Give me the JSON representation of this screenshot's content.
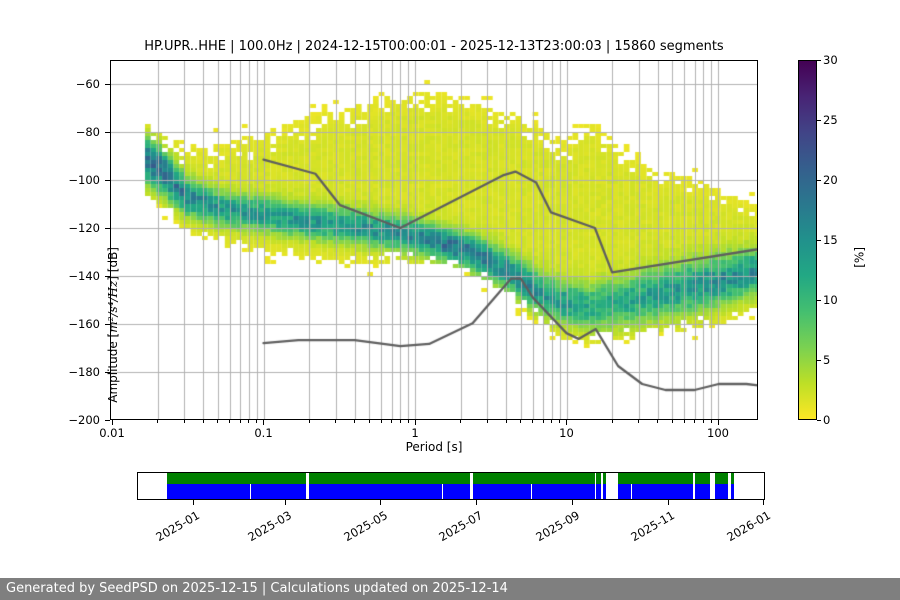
{
  "title": "HP.UPR..HHE | 100.0Hz | 2024-12-15T00:00:01 - 2025-12-13T23:00:03 | 15860 segments",
  "footer": {
    "text": "Generated by SeedPSD on 2025-12-15 | Calculations updated on 2025-12-14",
    "bg": "#7f7f7f",
    "fg": "#ffffff"
  },
  "chart_data": {
    "type": "heatmap",
    "description": "PPSD probabilistic power spectral density of seismic channel HP.UPR..HHE with Peterson NLNM/NHNM noise model lines and a data-availability timeline",
    "xlabel": "Period [s]",
    "xscale": "log",
    "xlim": [
      0.01,
      183
    ],
    "xticks": [
      {
        "v": 0.01,
        "label": "0.01"
      },
      {
        "v": 0.1,
        "label": "0.1"
      },
      {
        "v": 1,
        "label": "1"
      },
      {
        "v": 10,
        "label": "10"
      },
      {
        "v": 100,
        "label": "100"
      }
    ],
    "ylabel": "Amplitude [m²/s⁴/Hz] [dB]",
    "ylabel_prefix": "Amplitude [",
    "ylabel_math": "m²/s⁴/Hz",
    "ylabel_suffix": "] [dB]",
    "ylim": [
      -200,
      -50
    ],
    "yticks": [
      {
        "v": -60,
        "label": "−60"
      },
      {
        "v": -80,
        "label": "−80"
      },
      {
        "v": -100,
        "label": "−100"
      },
      {
        "v": -120,
        "label": "−120"
      },
      {
        "v": -140,
        "label": "−140"
      },
      {
        "v": -160,
        "label": "−160"
      },
      {
        "v": -180,
        "label": "−180"
      },
      {
        "v": -200,
        "label": "−200"
      }
    ],
    "grid": {
      "color": "#b0b0b0",
      "which": "both"
    },
    "colorbar": {
      "label": "[%]",
      "lim": [
        0,
        30
      ],
      "ticks": [
        {
          "v": 0,
          "label": "0"
        },
        {
          "v": 5,
          "label": "5"
        },
        {
          "v": 10,
          "label": "10"
        },
        {
          "v": 15,
          "label": "15"
        },
        {
          "v": 20,
          "label": "20"
        },
        {
          "v": 25,
          "label": "25"
        },
        {
          "v": 30,
          "label": "30"
        }
      ],
      "colormap": "viridis reversed (0% yellow, 30% dark purple)",
      "stops": [
        [
          0.0,
          "#440154"
        ],
        [
          0.1,
          "#482475"
        ],
        [
          0.2,
          "#414487"
        ],
        [
          0.3,
          "#355f8d"
        ],
        [
          0.4,
          "#2a788e"
        ],
        [
          0.5,
          "#21918c"
        ],
        [
          0.6,
          "#22a884"
        ],
        [
          0.7,
          "#44bf70"
        ],
        [
          0.8,
          "#7ad151"
        ],
        [
          0.9,
          "#bddf26"
        ],
        [
          1.0,
          "#fde725"
        ]
      ]
    },
    "noise_models": {
      "name": "Peterson (1993) new low / high noise models",
      "color": "#5f5f5f",
      "nlnm": [
        [
          0.1,
          -168.0
        ],
        [
          0.17,
          -166.7
        ],
        [
          0.4,
          -166.7
        ],
        [
          0.8,
          -169.2
        ],
        [
          1.24,
          -168.3
        ],
        [
          2.4,
          -159.7
        ],
        [
          4.3,
          -141.1
        ],
        [
          5.0,
          -141.1
        ],
        [
          6.0,
          -149.0
        ],
        [
          10.0,
          -163.8
        ],
        [
          12.0,
          -166.2
        ],
        [
          15.6,
          -162.1
        ],
        [
          21.9,
          -177.5
        ],
        [
          31.6,
          -185.0
        ],
        [
          45.0,
          -187.5
        ],
        [
          70.0,
          -187.5
        ],
        [
          101.0,
          -185.0
        ],
        [
          154.0,
          -185.0
        ],
        [
          328.0,
          -187.5
        ]
      ],
      "nhnm": [
        [
          0.1,
          -91.5
        ],
        [
          0.22,
          -97.4
        ],
        [
          0.32,
          -110.5
        ],
        [
          0.8,
          -120.0
        ],
        [
          3.8,
          -98.1
        ],
        [
          4.6,
          -96.5
        ],
        [
          6.3,
          -101.0
        ],
        [
          7.9,
          -113.5
        ],
        [
          15.4,
          -120.0
        ],
        [
          20.0,
          -138.5
        ],
        [
          354.8,
          -126.0
        ]
      ]
    },
    "ppsd_distribution": {
      "description": "Envelope / mode of the PSD probability cloud, read from the plot (dB vs period in s); peak_pct is the maximum probability of the mode band",
      "min_period": 0.0165,
      "max_period": 183,
      "periods": [
        0.017,
        0.022,
        0.03,
        0.05,
        0.09,
        0.18,
        0.35,
        0.7,
        1.2,
        2.0,
        3.5,
        6.0,
        9.0,
        14,
        22,
        40,
        70,
        110,
        180
      ],
      "top_db": [
        -77,
        -81,
        -85,
        -84,
        -81,
        -74,
        -70,
        -65,
        -63,
        -65,
        -70,
        -76,
        -84,
        -76,
        -86,
        -96,
        -100,
        -105,
        -111
      ],
      "bottom_db": [
        -108,
        -113,
        -122,
        -127,
        -130,
        -134,
        -136,
        -135,
        -134,
        -138,
        -146,
        -158,
        -166,
        -168,
        -167,
        -164,
        -162,
        -159,
        -153
      ],
      "mode_db": [
        -92,
        -98,
        -107,
        -112,
        -114,
        -117,
        -119,
        -122,
        -125,
        -129,
        -136,
        -146,
        -151,
        -153,
        -151,
        -147,
        -144,
        -141,
        -138
      ],
      "sigma_db": [
        6,
        6,
        5,
        4.5,
        4.5,
        4.5,
        4.5,
        4.5,
        4.5,
        4.5,
        5,
        5.5,
        5.5,
        6,
        6.5,
        7,
        7,
        6.5,
        6
      ],
      "peak_pct": [
        17,
        17,
        14,
        12,
        12,
        12,
        12.5,
        13,
        15,
        16,
        14,
        13,
        12,
        10,
        10,
        11,
        12,
        13,
        13
      ]
    },
    "timeline": {
      "axis_start": "2024-11-26",
      "axis_end": "2026-01-02",
      "data_start": "2024-12-15",
      "data_end": "2025-12-13",
      "xticks": [
        {
          "label": "2025-01",
          "date": "2025-01-01"
        },
        {
          "label": "2025-03",
          "date": "2025-03-01"
        },
        {
          "label": "2025-05",
          "date": "2025-05-01"
        },
        {
          "label": "2025-07",
          "date": "2025-07-01"
        },
        {
          "label": "2025-09",
          "date": "2025-09-01"
        },
        {
          "label": "2025-11",
          "date": "2025-11-01"
        },
        {
          "label": "2026-01",
          "date": "2026-01-01"
        }
      ],
      "rows": [
        {
          "name": "coverage-green",
          "color": "#008000",
          "segments": [
            [
              "2024-12-15",
              "2025-03-14"
            ],
            [
              "2025-03-16",
              "2025-06-27"
            ],
            [
              "2025-06-29",
              "2025-09-15"
            ],
            [
              "2025-09-16",
              "2025-09-19"
            ],
            [
              "2025-09-20",
              "2025-09-22"
            ],
            [
              "2025-09-30",
              "2025-11-17"
            ],
            [
              "2025-11-18",
              "2025-11-28"
            ],
            [
              "2025-12-01",
              "2025-12-09"
            ],
            [
              "2025-12-11",
              "2025-12-13"
            ]
          ]
        },
        {
          "name": "availability-blue",
          "color": "#0000ff",
          "segments": [
            [
              "2024-12-15",
              "2025-02-06"
            ],
            [
              "2025-02-07",
              "2025-03-14"
            ],
            [
              "2025-03-16",
              "2025-06-09"
            ],
            [
              "2025-06-10",
              "2025-06-27"
            ],
            [
              "2025-06-29",
              "2025-08-05"
            ],
            [
              "2025-08-06",
              "2025-09-15"
            ],
            [
              "2025-09-16",
              "2025-09-19"
            ],
            [
              "2025-09-20",
              "2025-09-22"
            ],
            [
              "2025-09-30",
              "2025-10-08"
            ],
            [
              "2025-10-09",
              "2025-11-17"
            ],
            [
              "2025-11-18",
              "2025-11-28"
            ],
            [
              "2025-12-01",
              "2025-12-09"
            ],
            [
              "2025-12-11",
              "2025-12-13"
            ]
          ]
        }
      ]
    }
  }
}
